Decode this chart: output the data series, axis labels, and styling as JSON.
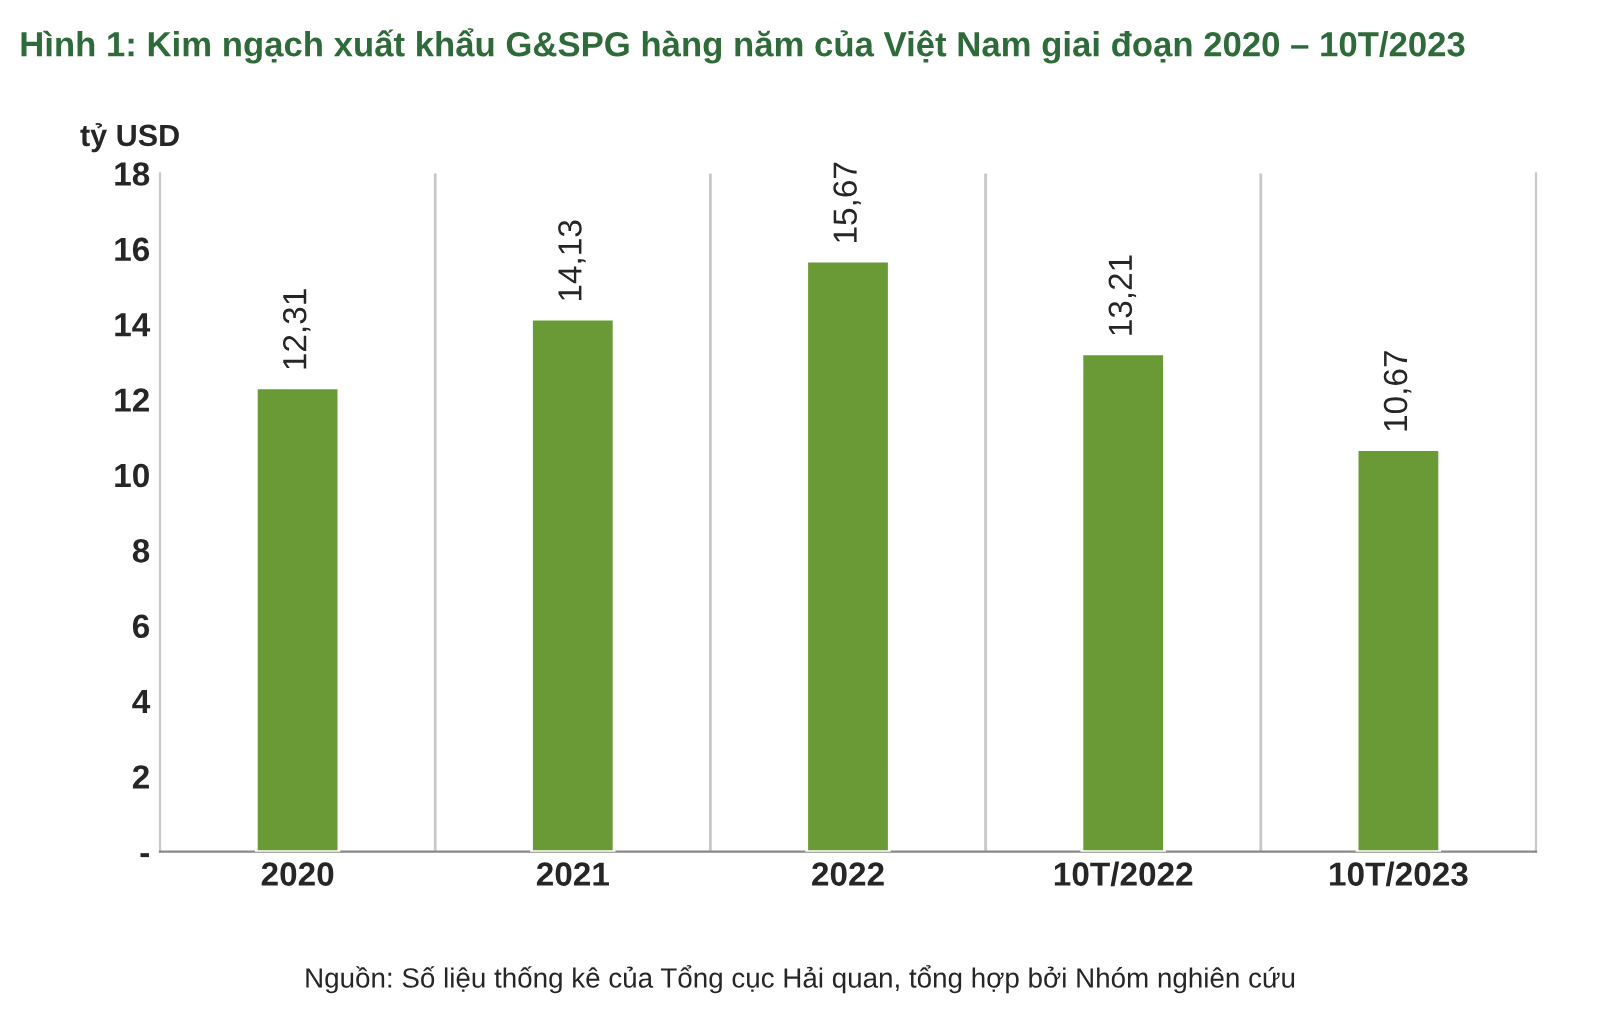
{
  "chart_data": {
    "type": "bar",
    "title": "Hình 1: Kim ngạch xuất khẩu G&SPG hàng năm của Việt Nam giai đoạn 2020 – 10T/2023",
    "ylabel": "tỷ USD",
    "categories": [
      "2020",
      "2021",
      "2022",
      "10T/2022",
      "10T/2023"
    ],
    "values": [
      12.31,
      14.13,
      15.67,
      13.21,
      10.67
    ],
    "value_labels": [
      "12,31",
      "14,13",
      "15,67",
      "13,21",
      "10,67"
    ],
    "color": "#6a9a35",
    "ylim": [
      0,
      18
    ],
    "yticks": [
      {
        "value": 0,
        "label": "-"
      },
      2,
      4,
      6,
      8,
      10,
      12,
      14,
      16,
      18
    ],
    "grid": "x",
    "annotations": [
      "Nguồn: Số liệu thống kê của Tổng cục Hải quan, tổng hợp bởi Nhóm nghiên cứu"
    ]
  }
}
